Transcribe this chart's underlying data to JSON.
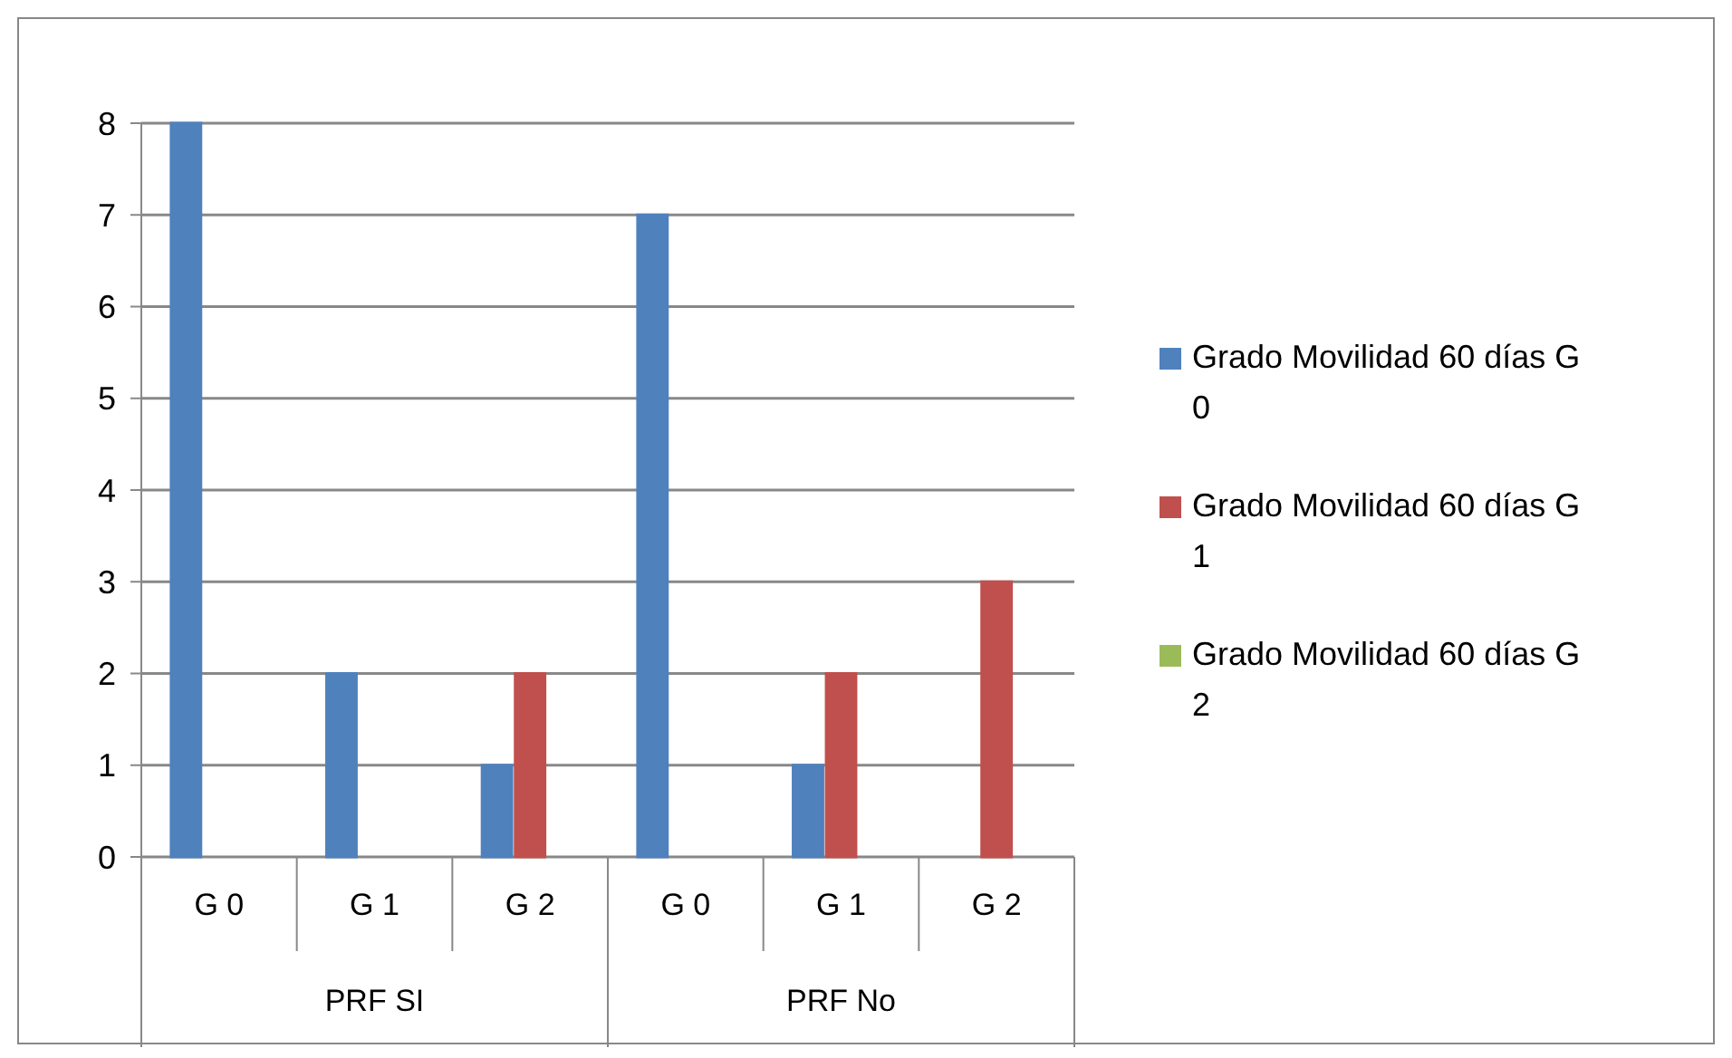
{
  "chart_data": {
    "type": "bar",
    "categories": [
      "G 0",
      "G 1",
      "G 2",
      "G 0",
      "G 1",
      "G 2"
    ],
    "series": [
      {
        "name": "Grado Movilidad 60 días G 0",
        "color": "#4f81bd",
        "values": [
          8,
          2,
          1,
          7,
          1,
          0
        ]
      },
      {
        "name": "Grado Movilidad 60 días G 1",
        "color": "#c0504d",
        "values": [
          0,
          0,
          2,
          0,
          2,
          3
        ]
      },
      {
        "name": "Grado Movilidad 60 días G 2",
        "color": "#9bbb59",
        "values": [
          0,
          0,
          0,
          0,
          0,
          0
        ]
      }
    ],
    "ylim": [
      0,
      8
    ],
    "yticks": [
      0,
      1,
      2,
      3,
      4,
      5,
      6,
      7,
      8
    ],
    "grid": "y",
    "legend": "right",
    "annotations": [
      "PRF SI",
      "PRF No"
    ]
  }
}
